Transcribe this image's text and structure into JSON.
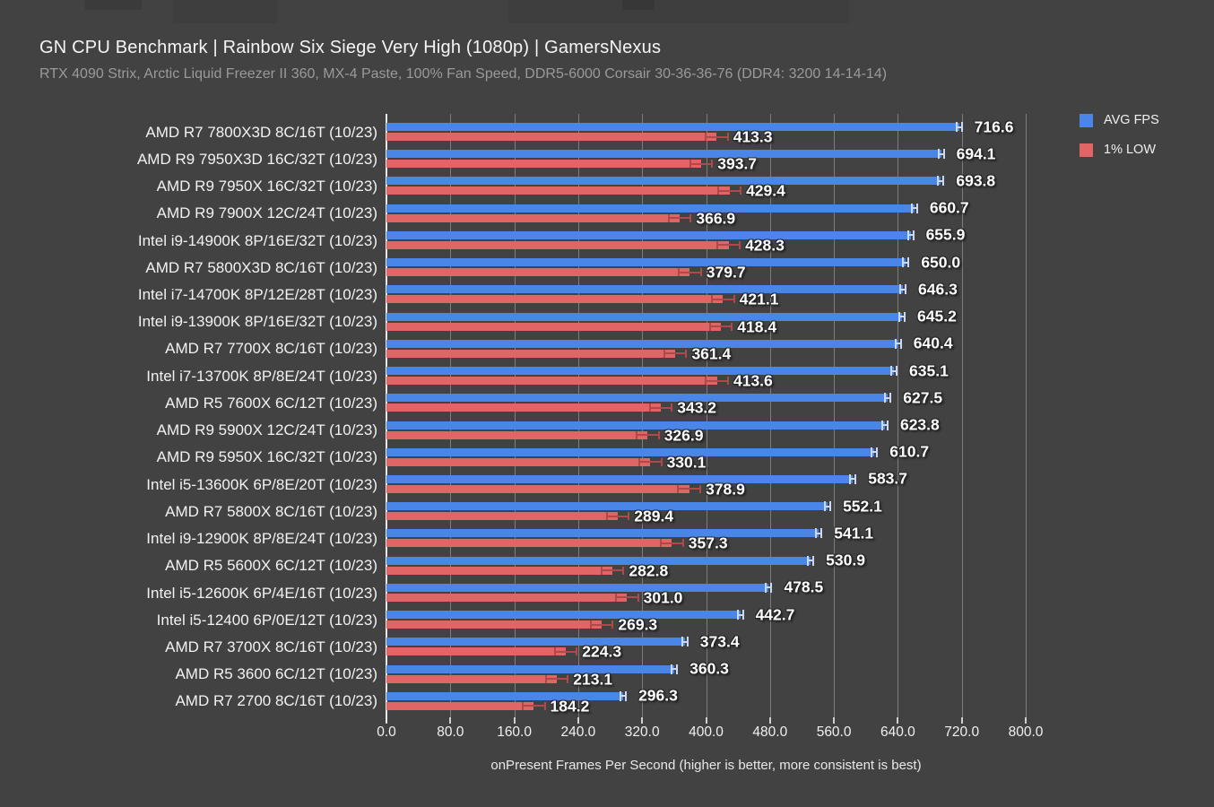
{
  "title": "GN CPU Benchmark | Rainbow Six Siege Very High (1080p) | GamersNexus",
  "subtitle": "RTX 4090 Strix, Arctic Liquid Freezer II 360, MX-4 Paste, 100% Fan Speed, DDR5-6000 Corsair 30-36-36-76 (DDR4: 3200 14-14-14)",
  "colors": {
    "background": "#424242",
    "avg_fps": "#4a86e8",
    "one_percent_low": "#e06666",
    "avg_whisker": "#ccd9f6",
    "low_whisker": "#b04a4a",
    "gridline": "#7d7d7d",
    "axis": "#e8e8e8"
  },
  "legend": [
    {
      "label": "AVG FPS",
      "color": "#4a86e8"
    },
    {
      "label": "1% LOW",
      "color": "#e06666"
    }
  ],
  "chart_data": {
    "type": "bar",
    "orientation": "horizontal",
    "title": "GN CPU Benchmark | Rainbow Six Siege Very High (1080p) | GamersNexus",
    "xlabel": "onPresent Frames Per Second (higher is better, more consistent is best)",
    "xlim": [
      0,
      800
    ],
    "grid": true,
    "legend_position": "top-right",
    "xticks": [
      {
        "value": 0,
        "label": "0.0"
      },
      {
        "value": 80,
        "label": "80.0"
      },
      {
        "value": 160,
        "label": "160.0"
      },
      {
        "value": 240,
        "label": "240.0"
      },
      {
        "value": 320,
        "label": "320.0"
      },
      {
        "value": 400,
        "label": "400.0"
      },
      {
        "value": 480,
        "label": "480.0"
      },
      {
        "value": 560,
        "label": "560.0"
      },
      {
        "value": 640,
        "label": "640.0"
      },
      {
        "value": 720,
        "label": "720.0"
      },
      {
        "value": 800,
        "label": "800.0"
      }
    ],
    "categories": [
      "AMD R7 7800X3D 8C/16T (10/23)",
      "AMD R9 7950X3D 16C/32T (10/23)",
      "AMD R9 7950X 16C/32T (10/23)",
      "AMD R9 7900X 12C/24T (10/23)",
      "Intel i9-14900K 8P/16E/32T (10/23)",
      "AMD R7 5800X3D 8C/16T (10/23)",
      "Intel i7-14700K 8P/12E/28T (10/23)",
      "Intel i9-13900K 8P/16E/32T (10/23)",
      "AMD R7 7700X 8C/16T (10/23)",
      "Intel i7-13700K 8P/8E/24T (10/23)",
      "AMD R5 7600X 6C/12T (10/23)",
      "AMD R9 5900X 12C/24T (10/23)",
      "AMD R9 5950X 16C/32T (10/23)",
      "Intel i5-13600K 6P/8E/20T (10/23)",
      "AMD R7 5800X 8C/16T (10/23)",
      "Intel i9-12900K 8P/8E/24T (10/23)",
      "AMD R5 5600X 6C/12T (10/23)",
      "Intel i5-12600K 6P/4E/16T (10/23)",
      "Intel i5-12400 6P/0E/12T (10/23)",
      "AMD R7 3700X 8C/16T (10/23)",
      "AMD R5 3600 6C/12T (10/23)",
      "AMD R7 2700 8C/16T (10/23)"
    ],
    "series": [
      {
        "name": "AVG FPS",
        "color": "#4a86e8",
        "error_extent": 4.5,
        "values": [
          716.6,
          694.1,
          693.8,
          660.7,
          655.9,
          650.0,
          646.3,
          645.2,
          640.4,
          635.1,
          627.5,
          623.8,
          610.7,
          583.7,
          552.1,
          541.1,
          530.9,
          478.5,
          442.7,
          373.4,
          360.3,
          296.3
        ]
      },
      {
        "name": "1% LOW",
        "color": "#e06666",
        "error_extent": 15,
        "values": [
          413.3,
          393.7,
          429.4,
          366.9,
          428.3,
          379.7,
          421.1,
          418.4,
          361.4,
          413.6,
          343.2,
          326.9,
          330.1,
          378.9,
          289.4,
          357.3,
          282.8,
          301.0,
          269.3,
          224.3,
          213.1,
          184.2
        ]
      }
    ]
  }
}
